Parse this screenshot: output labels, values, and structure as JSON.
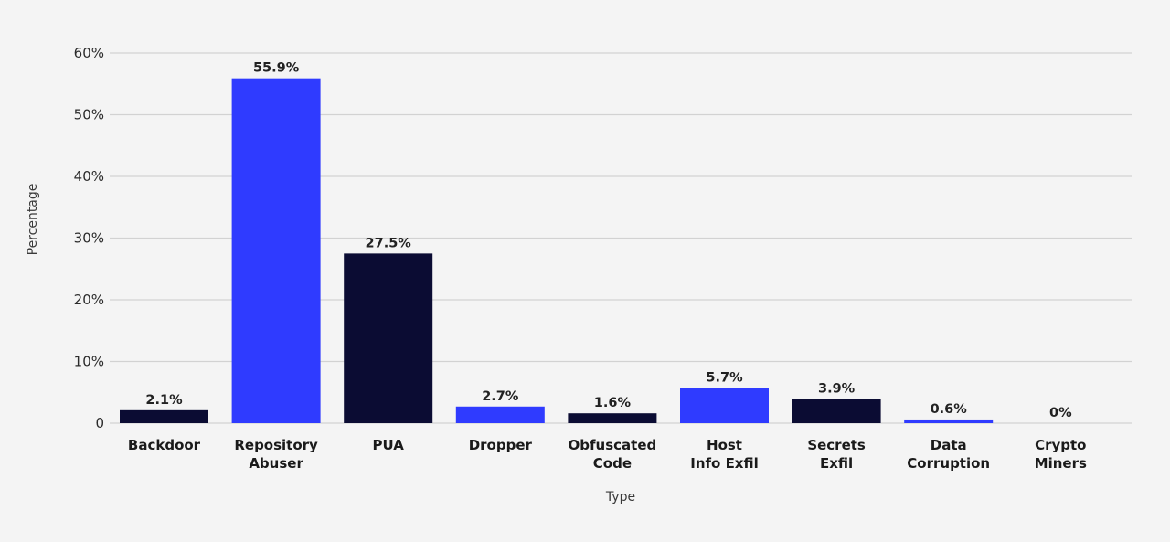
{
  "chart_data": {
    "type": "bar",
    "xlabel": "Type",
    "ylabel": "Percentage",
    "ylim": [
      0,
      60
    ],
    "yticks": [
      0,
      10,
      20,
      30,
      40,
      50,
      60
    ],
    "ytick_labels": [
      "0",
      "10%",
      "20%",
      "30%",
      "40%",
      "50%",
      "60%"
    ],
    "grid": true,
    "categories": [
      [
        "Backdoor"
      ],
      [
        "Repository",
        "Abuser"
      ],
      [
        "PUA"
      ],
      [
        "Dropper"
      ],
      [
        "Obfuscated",
        "Code"
      ],
      [
        "Host",
        "Info Exfil"
      ],
      [
        "Secrets",
        "Exfil"
      ],
      [
        "Data",
        "Corruption"
      ],
      [
        "Crypto",
        "Miners"
      ]
    ],
    "values": [
      2.1,
      55.9,
      27.5,
      2.7,
      1.6,
      5.7,
      3.9,
      0.6,
      0
    ],
    "value_labels": [
      "2.1%",
      "55.9%",
      "27.5%",
      "2.7%",
      "1.6%",
      "5.7%",
      "3.9%",
      "0.6%",
      "0%"
    ],
    "bar_colors": [
      "#0b0c33",
      "#2f3bff",
      "#0b0c33",
      "#2f3bff",
      "#0b0c33",
      "#2f3bff",
      "#0b0c33",
      "#2f3bff",
      "#0b0c33"
    ]
  },
  "colors": {
    "background": "#f4f4f4",
    "grid": "#d2d2d2",
    "dark_bar": "#0b0c33",
    "blue_bar": "#2f3bff"
  }
}
